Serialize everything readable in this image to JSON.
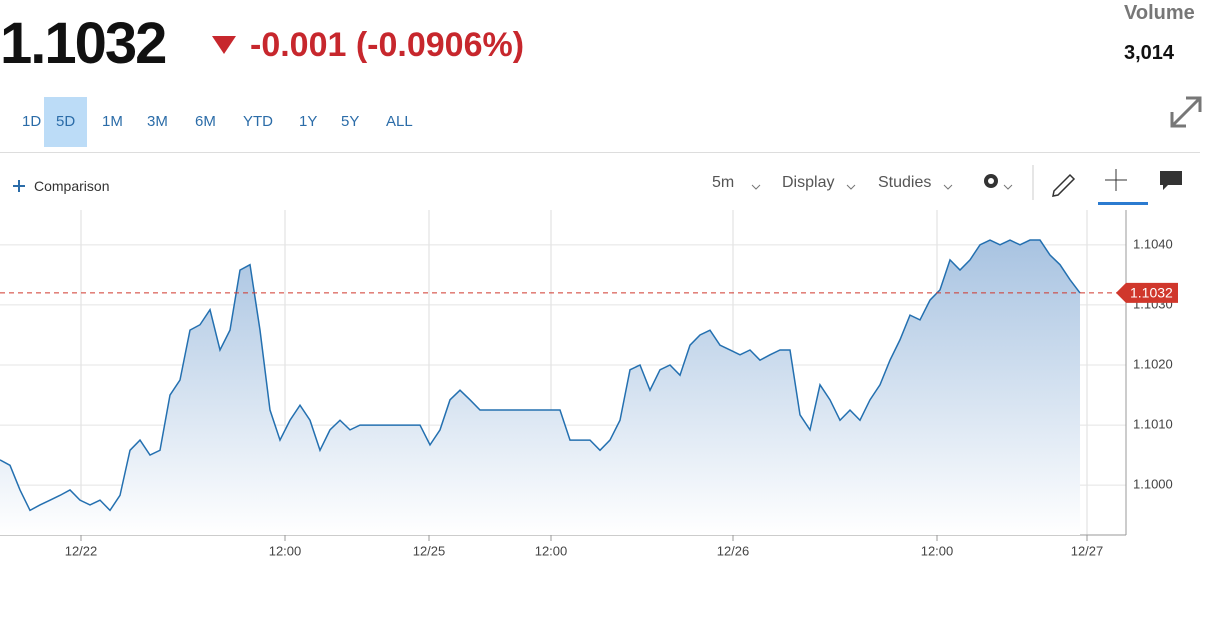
{
  "header": {
    "price": "1.1032",
    "change": "-0.001 (-0.0906%)",
    "volume_label": "Volume",
    "volume": "3,014",
    "ranges": [
      "1D",
      "5D",
      "1M",
      "3M",
      "6M",
      "YTD",
      "1Y",
      "5Y",
      "ALL"
    ]
  },
  "toolbar": {
    "comparison": "Comparison",
    "interval": "5m",
    "display": "Display",
    "studies": "Studies"
  },
  "chart_data": {
    "type": "line",
    "color": "#2470b0",
    "area": true,
    "grid": true,
    "values": [
      1.10042,
      1.10033,
      1.09992,
      1.09958,
      1.09967,
      1.09975,
      1.09983,
      1.09992,
      1.09975,
      1.09967,
      1.09975,
      1.09958,
      1.09983,
      1.10058,
      1.10075,
      1.1005,
      1.10058,
      1.1015,
      1.10175,
      1.10258,
      1.10267,
      1.10292,
      1.10225,
      1.10258,
      1.10358,
      1.10367,
      1.10258,
      1.10125,
      1.10075,
      1.10108,
      1.10133,
      1.10108,
      1.10058,
      1.10092,
      1.10108,
      1.10092,
      1.101,
      1.101,
      1.101,
      1.101,
      1.101,
      1.101,
      1.101,
      1.10067,
      1.10092,
      1.10142,
      1.10158,
      1.10142,
      1.10125,
      1.10125,
      1.10125,
      1.10125,
      1.10125,
      1.10125,
      1.10125,
      1.10125,
      1.10125,
      1.10075,
      1.10075,
      1.10075,
      1.10058,
      1.10075,
      1.10108,
      1.10192,
      1.102,
      1.10158,
      1.10192,
      1.102,
      1.10183,
      1.10233,
      1.1025,
      1.10258,
      1.10233,
      1.10225,
      1.10217,
      1.10225,
      1.10208,
      1.10217,
      1.10225,
      1.10225,
      1.10117,
      1.10092,
      1.10167,
      1.10142,
      1.10108,
      1.10125,
      1.10108,
      1.10142,
      1.10167,
      1.10208,
      1.10242,
      1.10283,
      1.10275,
      1.10308,
      1.10325,
      1.10375,
      1.10358,
      1.10375,
      1.104,
      1.10408,
      1.104,
      1.10408,
      1.104,
      1.10408,
      1.10408,
      1.10383,
      1.10367,
      1.10342,
      1.1032
    ],
    "xlim": [
      0,
      112
    ],
    "xticks": [
      {
        "value": 8.1,
        "label": "12/22"
      },
      {
        "value": 28.5,
        "label": "12:00"
      },
      {
        "value": 42.9,
        "label": "12/25"
      },
      {
        "value": 55.1,
        "label": "12:00"
      },
      {
        "value": 73.3,
        "label": "12/26"
      },
      {
        "value": 93.7,
        "label": "12:00"
      },
      {
        "value": 108.7,
        "label": "12/27"
      }
    ],
    "ylim": [
      1.09917,
      1.10458
    ],
    "yticks": [
      {
        "value": 1.1,
        "label": "1.1000"
      },
      {
        "value": 1.101,
        "label": "1.1010"
      },
      {
        "value": 1.102,
        "label": "1.1020"
      },
      {
        "value": 1.103,
        "label": "1.1030"
      },
      {
        "value": 1.104,
        "label": "1.1040"
      }
    ],
    "last_price": 1.1032,
    "last_price_color": "#d0372c"
  }
}
